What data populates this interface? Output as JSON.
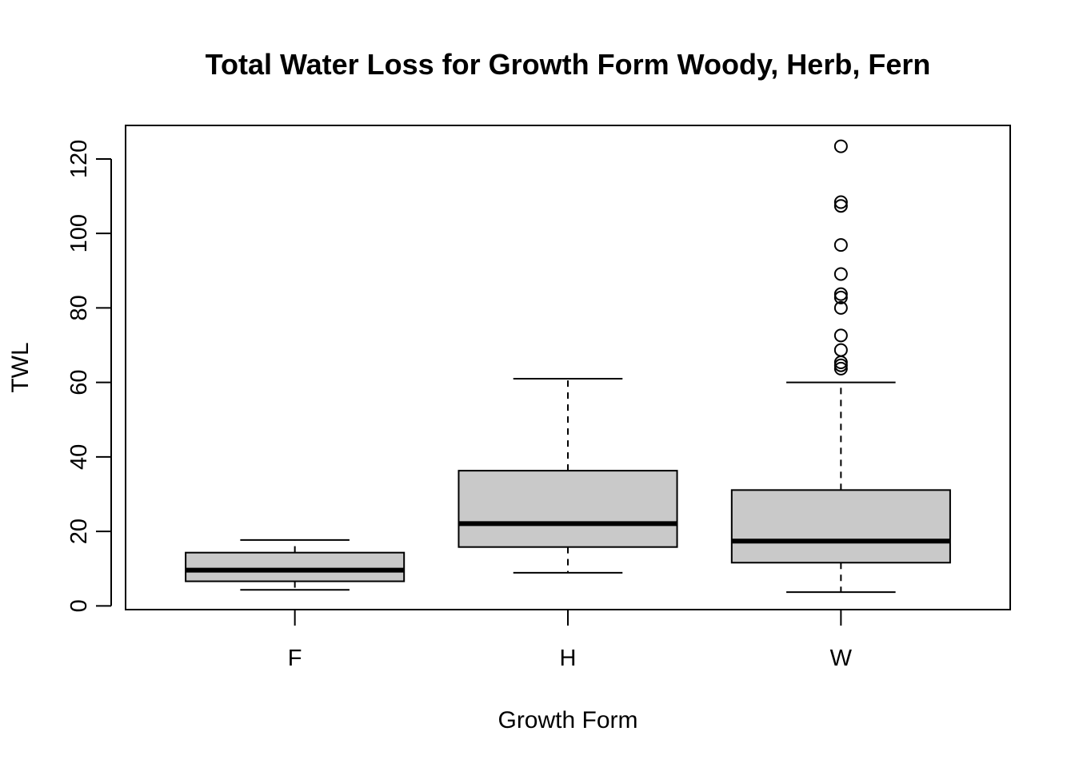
{
  "chart_data": {
    "type": "boxplot",
    "title": "Total Water Loss for Growth Form Woody, Herb, Fern",
    "xlabel": "Growth Form",
    "ylabel": "TWL",
    "ylim": [
      -1,
      129
    ],
    "yticks": [
      "0",
      "20",
      "40",
      "60",
      "80",
      "100",
      "120"
    ],
    "box_fill": "#c9c9c9",
    "line_color": "#000000",
    "grid": false,
    "categories": [
      "F",
      "H",
      "W"
    ],
    "boxes": [
      {
        "category": "F",
        "whisker_low": 4.3,
        "q1": 6.6,
        "median": 9.6,
        "q3": 14.3,
        "whisker_high": 17.7,
        "outliers": []
      },
      {
        "category": "H",
        "whisker_low": 8.9,
        "q1": 15.8,
        "median": 22.1,
        "q3": 36.3,
        "whisker_high": 61.0,
        "outliers": []
      },
      {
        "category": "W",
        "whisker_low": 3.7,
        "q1": 11.6,
        "median": 17.4,
        "q3": 31.1,
        "whisker_high": 60.0,
        "outliers": [
          63.7,
          64.6,
          65.4,
          68.7,
          72.6,
          80.0,
          82.8,
          83.7,
          89.1,
          96.9,
          107.4,
          108.4,
          123.4
        ]
      }
    ]
  }
}
